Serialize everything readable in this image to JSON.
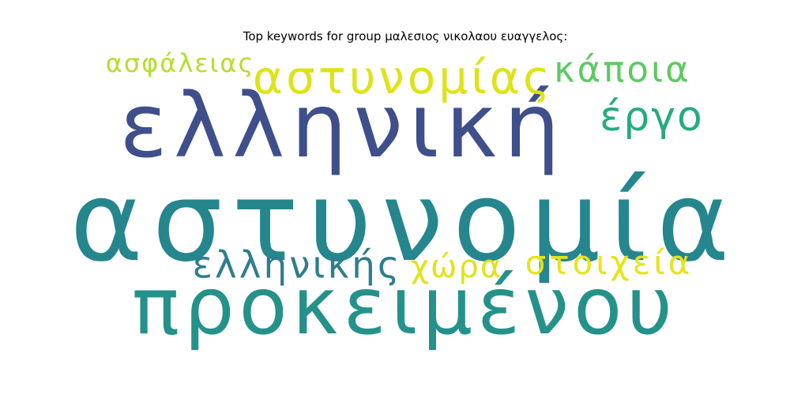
{
  "chart_data": {
    "type": "wordcloud",
    "title": "Top keywords for group μαλεσιος νικολαου ευαγγελος:",
    "words": [
      {
        "text": "αστυνομία",
        "weight": 1.0,
        "color": "#25868e"
      },
      {
        "text": "ελληνική",
        "weight": 0.8,
        "color": "#3f4f8c"
      },
      {
        "text": "προκειμένου",
        "weight": 0.72,
        "color": "#24928a"
      },
      {
        "text": "αστυνομίας",
        "weight": 0.36,
        "color": "#dde318"
      },
      {
        "text": "ελληνικής",
        "weight": 0.31,
        "color": "#2e7d8e"
      },
      {
        "text": "στοιχεία",
        "weight": 0.3,
        "color": "#e5e419"
      },
      {
        "text": "κάποια",
        "weight": 0.28,
        "color": "#5ec962"
      },
      {
        "text": "έργο",
        "weight": 0.28,
        "color": "#25ab82"
      },
      {
        "text": "χώρα",
        "weight": 0.26,
        "color": "#e0e318"
      },
      {
        "text": "ασφάλειας",
        "weight": 0.24,
        "color": "#b5de2b"
      }
    ]
  }
}
